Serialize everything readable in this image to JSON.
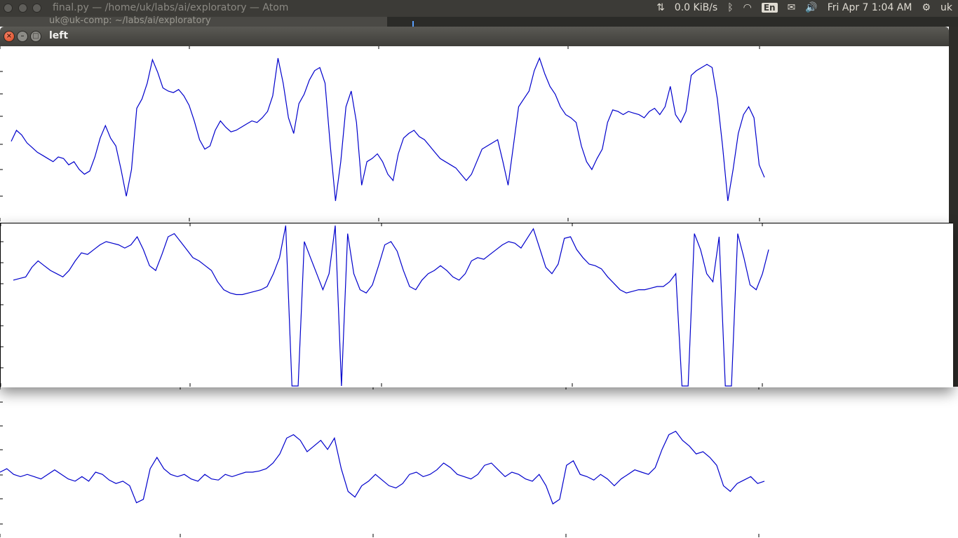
{
  "system_bar": {
    "window_title": "final.py — /home/uk/labs/ai/exploratory — Atom",
    "network_speed": "0.0 KiB/s",
    "keyboard_layout": "En",
    "datetime": "Fri Apr  7  1:04 AM",
    "user": "uk",
    "icons": [
      "updown-arrows-icon",
      "bluetooth-icon",
      "wifi-icon",
      "mail-icon",
      "volume-icon",
      "gear-icon"
    ]
  },
  "background_window": {
    "ghost_text": "uk@uk-comp: ~/labs/ai/exploratory"
  },
  "window": {
    "title": "left",
    "controls": {
      "close": "×",
      "minimize": "–",
      "maximize": "□"
    }
  },
  "colors": {
    "line": "#0000cc",
    "background": "#ffffff",
    "titlebar": "#3c3b37",
    "close": "#e3592f"
  },
  "chart_data": [
    {
      "type": "line",
      "title": "",
      "xlabel": "",
      "ylabel": "",
      "grid": false,
      "xlim": [
        0,
        1000
      ],
      "ylim": [
        0,
        1
      ],
      "x_tick_positions": [
        0,
        250,
        500,
        750,
        1000
      ],
      "series": [
        {
          "values": [
            0.43,
            0.5,
            0.47,
            0.42,
            0.39,
            0.36,
            0.34,
            0.32,
            0.3,
            0.33,
            0.32,
            0.28,
            0.3,
            0.25,
            0.22,
            0.24,
            0.33,
            0.45,
            0.53,
            0.45,
            0.4,
            0.25,
            0.08,
            0.25,
            0.64,
            0.7,
            0.8,
            0.95,
            0.87,
            0.77,
            0.75,
            0.74,
            0.76,
            0.72,
            0.66,
            0.56,
            0.44,
            0.38,
            0.4,
            0.5,
            0.56,
            0.52,
            0.49,
            0.5,
            0.52,
            0.54,
            0.56,
            0.55,
            0.58,
            0.62,
            0.72,
            0.96,
            0.8,
            0.58,
            0.48,
            0.67,
            0.73,
            0.82,
            0.88,
            0.9,
            0.8,
            0.4,
            0.05,
            0.3,
            0.65,
            0.75,
            0.55,
            0.15,
            0.3,
            0.32,
            0.35,
            0.3,
            0.22,
            0.18,
            0.35,
            0.45,
            0.48,
            0.5,
            0.46,
            0.44,
            0.4,
            0.36,
            0.32,
            0.3,
            0.28,
            0.26,
            0.22,
            0.18,
            0.22,
            0.3,
            0.38,
            0.4,
            0.42,
            0.44,
            0.3,
            0.15,
            0.4,
            0.65,
            0.7,
            0.75,
            0.88,
            0.96,
            0.86,
            0.78,
            0.73,
            0.65,
            0.6,
            0.58,
            0.55,
            0.4,
            0.3,
            0.25,
            0.32,
            0.38,
            0.55,
            0.63,
            0.62,
            0.6,
            0.62,
            0.61,
            0.6,
            0.58,
            0.62,
            0.64,
            0.6,
            0.65,
            0.78,
            0.6,
            0.55,
            0.62,
            0.85,
            0.88,
            0.9,
            0.92,
            0.9,
            0.7,
            0.4,
            0.05,
            0.25,
            0.48,
            0.6,
            0.65,
            0.58,
            0.28,
            0.2
          ]
        }
      ]
    },
    {
      "type": "line",
      "title": "",
      "xlabel": "",
      "ylabel": "",
      "grid": false,
      "xlim": [
        0,
        1000
      ],
      "ylim": [
        0,
        1
      ],
      "x_tick_positions": [
        0,
        250,
        500,
        750,
        1000
      ],
      "series": [
        {
          "values": [
            0.66,
            0.67,
            0.68,
            0.74,
            0.78,
            0.75,
            0.72,
            0.7,
            0.68,
            0.72,
            0.78,
            0.83,
            0.82,
            0.85,
            0.88,
            0.9,
            0.89,
            0.88,
            0.86,
            0.88,
            0.93,
            0.85,
            0.75,
            0.72,
            0.82,
            0.93,
            0.95,
            0.9,
            0.85,
            0.8,
            0.78,
            0.75,
            0.72,
            0.65,
            0.6,
            0.58,
            0.57,
            0.57,
            0.58,
            0.59,
            0.6,
            0.62,
            0.7,
            0.8,
            1.0,
            0.0,
            0.0,
            0.9,
            0.8,
            0.7,
            0.6,
            0.7,
            1.0,
            0.0,
            0.95,
            0.7,
            0.6,
            0.58,
            0.63,
            0.75,
            0.88,
            0.9,
            0.84,
            0.72,
            0.62,
            0.6,
            0.66,
            0.7,
            0.72,
            0.75,
            0.72,
            0.68,
            0.66,
            0.7,
            0.78,
            0.8,
            0.79,
            0.82,
            0.85,
            0.88,
            0.9,
            0.89,
            0.86,
            0.92,
            0.98,
            0.86,
            0.74,
            0.7,
            0.76,
            0.92,
            0.93,
            0.85,
            0.8,
            0.76,
            0.75,
            0.73,
            0.68,
            0.64,
            0.6,
            0.58,
            0.59,
            0.6,
            0.6,
            0.61,
            0.62,
            0.62,
            0.65,
            0.7,
            0.0,
            0.0,
            0.95,
            0.85,
            0.7,
            0.65,
            0.93,
            0.0,
            0.0,
            0.95,
            0.8,
            0.63,
            0.6,
            0.7,
            0.85
          ]
        }
      ]
    },
    {
      "type": "line",
      "title": "",
      "xlabel": "",
      "ylabel": "",
      "grid": false,
      "xlim": [
        0,
        1000
      ],
      "ylim": [
        0,
        1
      ],
      "x_tick_positions": [
        0,
        250,
        500,
        750,
        1000
      ],
      "series": [
        {
          "values": [
            0.42,
            0.45,
            0.4,
            0.38,
            0.4,
            0.38,
            0.36,
            0.4,
            0.44,
            0.4,
            0.36,
            0.34,
            0.38,
            0.34,
            0.42,
            0.4,
            0.35,
            0.32,
            0.34,
            0.3,
            0.15,
            0.18,
            0.45,
            0.55,
            0.45,
            0.4,
            0.38,
            0.4,
            0.36,
            0.34,
            0.4,
            0.36,
            0.35,
            0.4,
            0.38,
            0.4,
            0.42,
            0.42,
            0.43,
            0.45,
            0.5,
            0.58,
            0.72,
            0.75,
            0.7,
            0.6,
            0.65,
            0.7,
            0.62,
            0.72,
            0.45,
            0.25,
            0.2,
            0.3,
            0.34,
            0.4,
            0.35,
            0.3,
            0.28,
            0.32,
            0.4,
            0.42,
            0.38,
            0.4,
            0.44,
            0.5,
            0.46,
            0.4,
            0.38,
            0.36,
            0.4,
            0.48,
            0.5,
            0.44,
            0.38,
            0.42,
            0.4,
            0.36,
            0.34,
            0.4,
            0.3,
            0.14,
            0.18,
            0.48,
            0.52,
            0.4,
            0.38,
            0.35,
            0.4,
            0.36,
            0.3,
            0.36,
            0.4,
            0.44,
            0.42,
            0.4,
            0.46,
            0.62,
            0.75,
            0.78,
            0.7,
            0.65,
            0.58,
            0.6,
            0.55,
            0.48,
            0.3,
            0.25,
            0.32,
            0.35,
            0.38,
            0.32,
            0.34
          ]
        }
      ]
    }
  ]
}
